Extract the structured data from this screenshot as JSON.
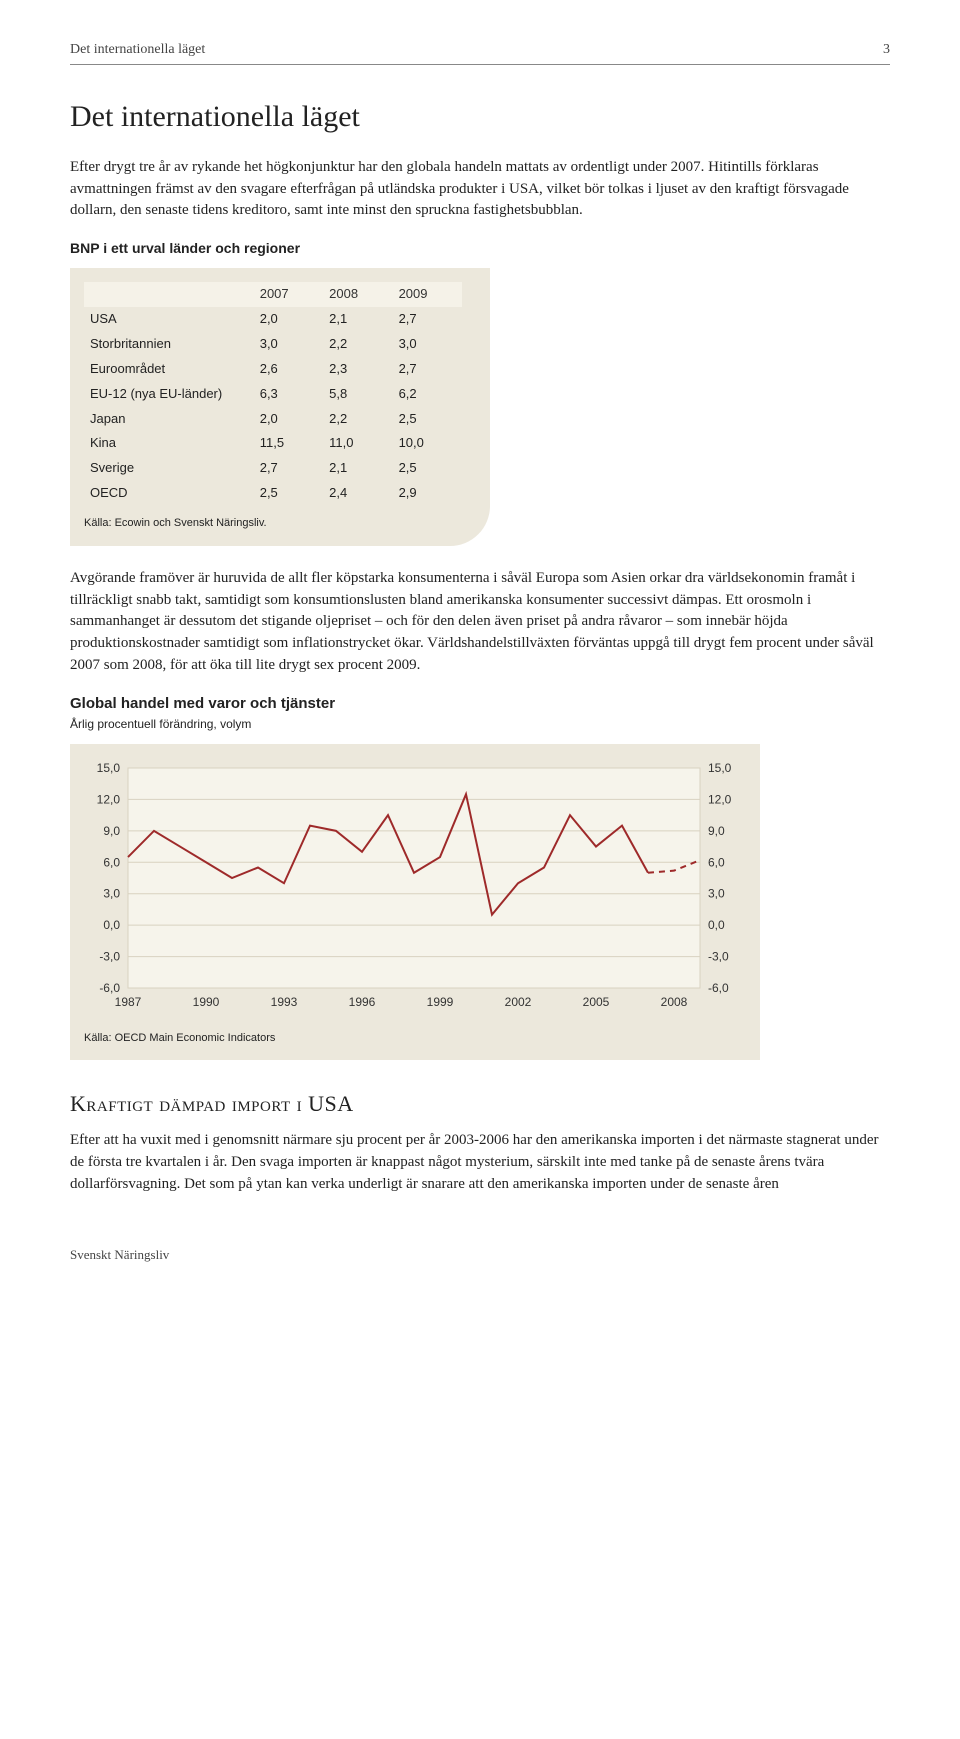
{
  "running_header": {
    "title": "Det internationella läget",
    "page_no": "3"
  },
  "page_title": "Det internationella läget",
  "intro": "Efter drygt tre år av rykande het högkonjunktur har den globala handeln mattats av ordentligt under 2007. Hitintills förklaras avmattningen främst av den svagare efterfrågan på utländska produkter i USA, vilket bör tolkas i ljuset av den kraftigt försvagade dollarn, den senaste tidens kreditoro, samt inte minst den spruckna fastighetsbubblan.",
  "bnp_table": {
    "title": "BNP i ett urval länder och regioner",
    "columns": [
      "",
      "2007",
      "2008",
      "2009"
    ],
    "rows": [
      [
        "USA",
        "2,0",
        "2,1",
        "2,7"
      ],
      [
        "Storbritannien",
        "3,0",
        "2,2",
        "3,0"
      ],
      [
        "Euroområdet",
        "2,6",
        "2,3",
        "2,7"
      ],
      [
        "EU-12 (nya EU-länder)",
        "6,3",
        "5,8",
        "6,2"
      ],
      [
        "Japan",
        "2,0",
        "2,2",
        "2,5"
      ],
      [
        "Kina",
        "11,5",
        "11,0",
        "10,0"
      ],
      [
        "Sverige",
        "2,7",
        "2,1",
        "2,5"
      ],
      [
        "OECD",
        "2,5",
        "2,4",
        "2,9"
      ]
    ],
    "source": "Källa: Ecowin och Svenskt Näringsliv.",
    "col_widths": [
      "44%",
      "18%",
      "18%",
      "18%"
    ],
    "bg_color": "#ece8dc"
  },
  "mid_para": "Avgörande framöver är huruvida de allt fler köpstarka konsumenterna i såväl Europa som Asien orkar dra världsekonomin framåt i tillräckligt snabb takt, samtidigt som konsumtionslusten bland amerikanska konsumenter successivt dämpas. Ett orosmoln i sammanhanget är dessutom det stigande oljepriset – och för den delen även priset på andra råvaror – som innebär höjda produktionskostnader samtidigt som inflationstrycket ökar. Världshandelstillväxten förväntas uppgå till drygt fem procent under såväl 2007 som 2008, för att öka till lite drygt sex procent 2009.",
  "chart": {
    "type": "line",
    "title": "Global handel med varor och tjänster",
    "subtitle": "Årlig procentuell förändring, volym",
    "source": "Källa: OECD Main Economic Indicators",
    "bg_color": "#ece8dc",
    "plot_bg": "#f6f4eb",
    "line_color": "#9e2a2a",
    "line_width": 2,
    "dash_last": 8,
    "grid_color": "#d8d2c0",
    "ylim": [
      -6,
      15
    ],
    "ytick_step": 3,
    "yticks": [
      "15,0",
      "12,0",
      "9,0",
      "6,0",
      "3,0",
      "0,0",
      "-3,0",
      "-6,0"
    ],
    "xlim": [
      1987,
      2009
    ],
    "xticks": [
      "1987",
      "1990",
      "1993",
      "1996",
      "1999",
      "2002",
      "2005",
      "2008"
    ],
    "series": [
      {
        "x": 1987,
        "y": 6.5
      },
      {
        "x": 1988,
        "y": 9.0
      },
      {
        "x": 1989,
        "y": 7.5
      },
      {
        "x": 1990,
        "y": 6.0
      },
      {
        "x": 1991,
        "y": 4.5
      },
      {
        "x": 1992,
        "y": 5.5
      },
      {
        "x": 1993,
        "y": 4.0
      },
      {
        "x": 1994,
        "y": 9.5
      },
      {
        "x": 1995,
        "y": 9.0
      },
      {
        "x": 1996,
        "y": 7.0
      },
      {
        "x": 1997,
        "y": 10.5
      },
      {
        "x": 1998,
        "y": 5.0
      },
      {
        "x": 1999,
        "y": 6.5
      },
      {
        "x": 2000,
        "y": 12.5
      },
      {
        "x": 2001,
        "y": 1.0
      },
      {
        "x": 2002,
        "y": 4.0
      },
      {
        "x": 2003,
        "y": 5.5
      },
      {
        "x": 2004,
        "y": 10.5
      },
      {
        "x": 2005,
        "y": 7.5
      },
      {
        "x": 2006,
        "y": 9.5
      },
      {
        "x": 2007,
        "y": 5.0
      },
      {
        "x": 2008,
        "y": 5.2
      },
      {
        "x": 2009,
        "y": 6.2
      }
    ],
    "dash_start_index": 20
  },
  "section2_heading": "Kraftigt dämpad import i USA",
  "section2_para": "Efter att ha vuxit med i genomsnitt närmare sju procent per år 2003-2006 har den amerikanska importen i det närmaste stagnerat under de första tre kvartalen i år. Den svaga importen är knappast något mysterium, särskilt inte med tanke på de senaste årens tvära dollarförsvagning. Det som på ytan kan verka underligt är snarare att den amerikanska importen under de senaste åren",
  "footer_brand": "Svenskt Näringsliv"
}
